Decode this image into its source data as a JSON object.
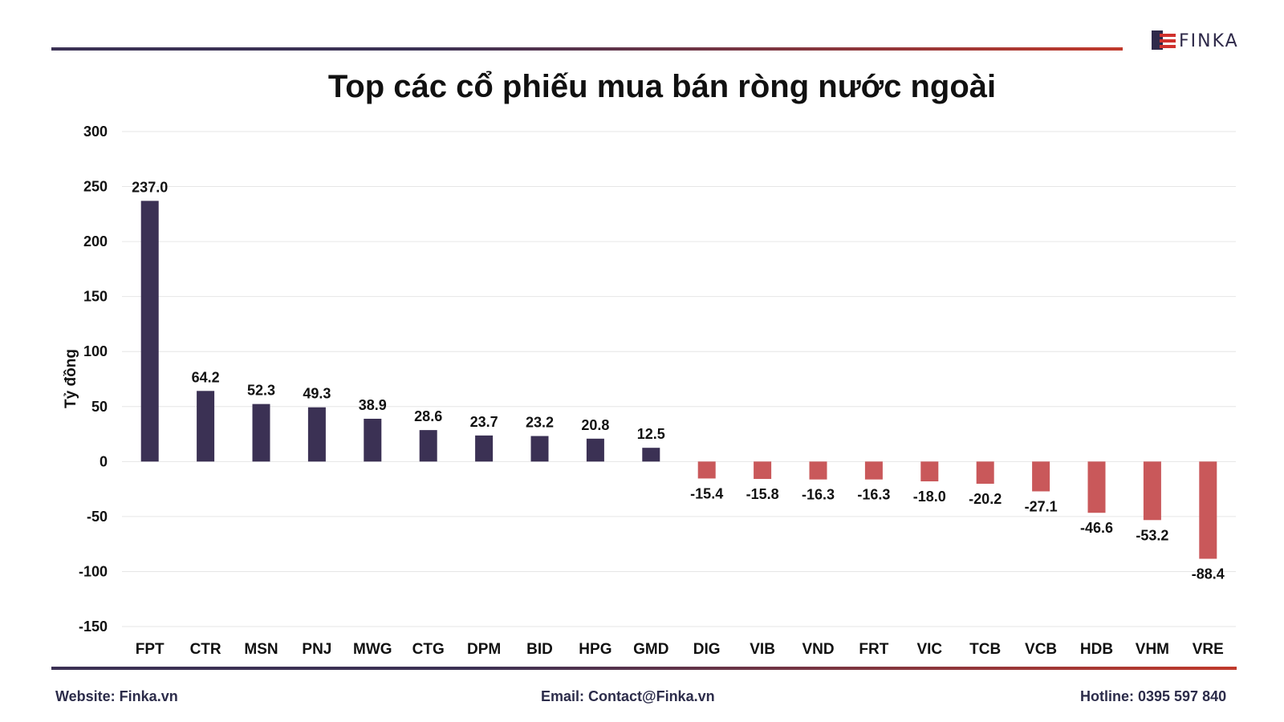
{
  "brand": {
    "name": "FINKA"
  },
  "colors": {
    "positive": "#3b3154",
    "negative": "#c9585a",
    "grid": "#e6e6e6"
  },
  "footer": {
    "website": "Website: Finka.vn",
    "email": "Email: Contact@Finka.vn",
    "hotline": "Hotline: 0395 597 840"
  },
  "chart_data": {
    "type": "bar",
    "title": "Top các cổ phiếu mua bán ròng nước ngoài",
    "xlabel": "",
    "ylabel": "Tỷ đồng",
    "ylim": [
      -150,
      300
    ],
    "yticks": [
      300,
      250,
      200,
      150,
      100,
      50,
      0,
      -50,
      -100,
      -150
    ],
    "grid": true,
    "categories": [
      "FPT",
      "CTR",
      "MSN",
      "PNJ",
      "MWG",
      "CTG",
      "DPM",
      "BID",
      "HPG",
      "GMD",
      "DIG",
      "VIB",
      "VND",
      "FRT",
      "VIC",
      "TCB",
      "VCB",
      "HDB",
      "VHM",
      "VRE"
    ],
    "values": [
      237.0,
      64.2,
      52.3,
      49.3,
      38.9,
      28.6,
      23.7,
      23.2,
      20.8,
      12.5,
      -15.4,
      -15.8,
      -16.3,
      -16.3,
      -18.0,
      -20.2,
      -27.1,
      -46.6,
      -53.2,
      -88.4
    ],
    "value_labels": [
      "237.0",
      "64.2",
      "52.3",
      "49.3",
      "38.9",
      "28.6",
      "23.7",
      "23.2",
      "20.8",
      "12.5",
      "-15.4",
      "-15.8",
      "-16.3",
      "-16.3",
      "-18.0",
      "-20.2",
      "-27.1",
      "-46.6",
      "-53.2",
      "-88.4"
    ]
  }
}
